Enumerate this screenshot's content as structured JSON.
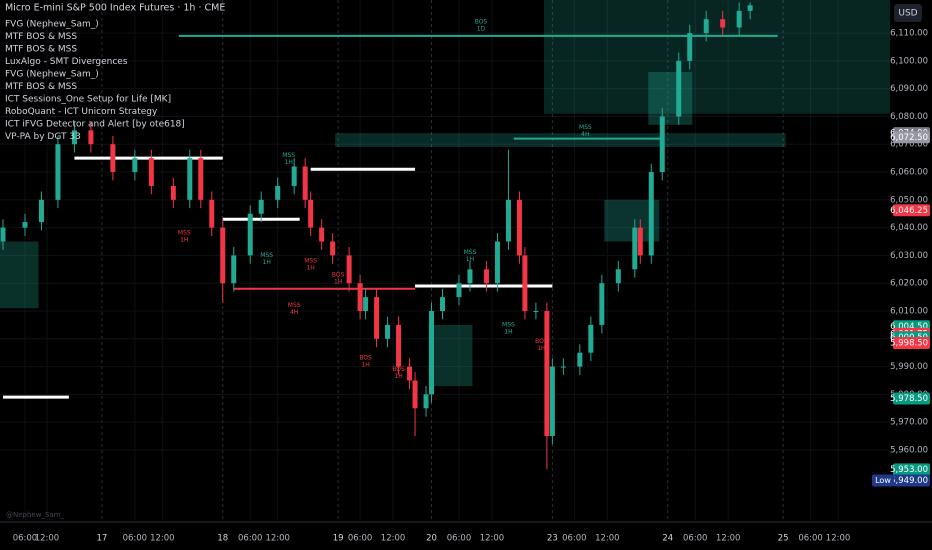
{
  "chart_data": {
    "type": "candlestick",
    "title": "Micro E-mini S&P 500 Index Futures · 1h · CME",
    "indicators": [
      "FVG (Nephew_Sam_)",
      "MTF BOS & MSS",
      "MTF BOS & MSS",
      "LuxAlgo - SMT Divergences",
      "FVG (Nephew_Sam_)",
      "MTF BOS & MSS",
      "ICT Sessions_One Setup for Life [MK]",
      "RoboQuant - ICT Unicorn Strategy",
      "ICT iFVG Detector and Alert [by ote618]",
      "VP-PA by DGT 33"
    ],
    "watermark": "@Nephew_Sam_",
    "currency": "USD",
    "up_color": "#22ab94",
    "down_color": "#f23645",
    "x": [
      0,
      4,
      7,
      10,
      13,
      16,
      20,
      24,
      27,
      31,
      34,
      36,
      38,
      40,
      42,
      45,
      47,
      50,
      53,
      55,
      56,
      58,
      60,
      63,
      65,
      66,
      68,
      70,
      72,
      74,
      75,
      77,
      78,
      80,
      83,
      85,
      88,
      90,
      92,
      94,
      95,
      97,
      99,
      100,
      102,
      105,
      107,
      109,
      112,
      115,
      116,
      118,
      120,
      123,
      125,
      128,
      131,
      134,
      136
    ],
    "open": [
      6035,
      6040,
      6042,
      6050,
      6070,
      6075,
      6070,
      6060,
      6065,
      6055,
      6050,
      6065,
      6050,
      6040,
      6020,
      6030,
      6045,
      6050,
      6055,
      6062,
      6050,
      6040,
      6035,
      6030,
      6020,
      6010,
      6015,
      6000,
      6005,
      5990,
      5985,
      5975,
      5980,
      6010,
      6015,
      6020,
      6025,
      6020,
      6035,
      6050,
      6030,
      6010,
      6010,
      5965,
      5990,
      5990,
      5995,
      6005,
      6020,
      6025,
      6040,
      6030,
      6060,
      6080,
      6100,
      6110,
      6115,
      6112,
      6118
    ],
    "high": [
      6043,
      6045,
      6053,
      6073,
      6078,
      6078,
      6073,
      6068,
      6068,
      6058,
      6068,
      6068,
      6053,
      6043,
      6033,
      6048,
      6053,
      6058,
      6065,
      6065,
      6053,
      6043,
      6038,
      6033,
      6023,
      6018,
      6018,
      6008,
      6008,
      5993,
      5988,
      5983,
      6013,
      6018,
      6023,
      6028,
      6028,
      6038,
      6068,
      6053,
      6033,
      6013,
      6013,
      5993,
      5993,
      5998,
      6008,
      6023,
      6028,
      6043,
      6043,
      6063,
      6083,
      6103,
      6113,
      6118,
      6118,
      6121,
      6121
    ],
    "low": [
      6032,
      6037,
      6039,
      6047,
      6067,
      6067,
      6057,
      6057,
      6052,
      6047,
      6047,
      6047,
      6037,
      6013,
      6017,
      6027,
      6042,
      6047,
      6052,
      6047,
      6037,
      6032,
      6027,
      6017,
      6007,
      6007,
      5997,
      5997,
      5987,
      5982,
      5965,
      5972,
      5977,
      6007,
      6012,
      6017,
      6017,
      6017,
      6032,
      6027,
      6007,
      6007,
      5953,
      5962,
      5987,
      5987,
      5992,
      6002,
      6017,
      6022,
      6027,
      6027,
      6057,
      6077,
      6097,
      6107,
      6109,
      6109,
      6115
    ],
    "close": [
      6040,
      6042,
      6050,
      6070,
      6075,
      6070,
      6060,
      6065,
      6055,
      6050,
      6065,
      6050,
      6040,
      6020,
      6030,
      6045,
      6050,
      6055,
      6062,
      6050,
      6040,
      6035,
      6030,
      6020,
      6010,
      6015,
      6000,
      6005,
      5990,
      5985,
      5975,
      5980,
      6010,
      6015,
      6020,
      6025,
      6020,
      6035,
      6050,
      6030,
      6010,
      6010,
      5965,
      5990,
      5990,
      5995,
      6005,
      6020,
      6025,
      6040,
      6030,
      6060,
      6080,
      6100,
      6110,
      6115,
      6112,
      6118,
      6120
    ],
    "xlim": [
      0,
      162
    ],
    "xticks": [
      {
        "value": 4,
        "label": "06:00"
      },
      {
        "value": 8,
        "label": "12:00"
      },
      {
        "value": 18,
        "label": "17"
      },
      {
        "value": 24,
        "label": "06:00"
      },
      {
        "value": 29,
        "label": "12:00"
      },
      {
        "value": 40,
        "label": "18"
      },
      {
        "value": 45,
        "label": "06:00"
      },
      {
        "value": 50,
        "label": "12:00"
      },
      {
        "value": 61,
        "label": "19"
      },
      {
        "value": 65,
        "label": "06:00"
      },
      {
        "value": 71,
        "label": "12:00"
      },
      {
        "value": 78,
        "label": "20"
      },
      {
        "value": 83,
        "label": "06:00"
      },
      {
        "value": 89,
        "label": "12:00"
      },
      {
        "value": 100,
        "label": "23"
      },
      {
        "value": 104,
        "label": "06:00"
      },
      {
        "value": 110,
        "label": "12:00"
      },
      {
        "value": 121,
        "label": "24"
      },
      {
        "value": 126,
        "label": "06:00"
      },
      {
        "value": 132,
        "label": "12:00"
      },
      {
        "value": 142,
        "label": "25"
      },
      {
        "value": 147,
        "label": "06:00"
      },
      {
        "value": 152,
        "label": "12:00"
      }
    ],
    "ylim": [
      5934.8,
      6121.9
    ],
    "yticks": [
      {
        "value": 5960,
        "label": "5,960.00"
      },
      {
        "value": 5970,
        "label": "5,970.00"
      },
      {
        "value": 5980,
        "label": "5,980.00"
      },
      {
        "value": 5990,
        "label": "5,990.00"
      },
      {
        "value": 6000,
        "label": "6,000.00"
      },
      {
        "value": 6010,
        "label": "6,010.00"
      },
      {
        "value": 6020,
        "label": "6,020.00"
      },
      {
        "value": 6030,
        "label": "6,030.00"
      },
      {
        "value": 6040,
        "label": "6,040.00"
      },
      {
        "value": 6050,
        "label": "6,050.00"
      },
      {
        "value": 6060,
        "label": "6,060.00"
      },
      {
        "value": 6070,
        "label": "6,070.00"
      },
      {
        "value": 6080,
        "label": "6,080.00"
      },
      {
        "value": 6090,
        "label": "6,090.00"
      },
      {
        "value": 6100,
        "label": "6,100.00"
      },
      {
        "value": 6110,
        "label": "6,110.00"
      }
    ],
    "price_tags": [
      {
        "value": 6074,
        "label": "6,074.00",
        "color": "#787b86"
      },
      {
        "value": 6072.5,
        "label": "6,072.50",
        "color": "#9598a1"
      },
      {
        "value": 6046.25,
        "label": "6,046.25",
        "color": "#f23645"
      },
      {
        "value": 6004.5,
        "label": "6,004.50",
        "color": "#089981"
      },
      {
        "value": 6001.75,
        "label": "6,001.75",
        "color": "#f23645"
      },
      {
        "value": 6000.5,
        "label": "6,000.50",
        "color": "#089981"
      },
      {
        "value": 5998.5,
        "label": "5,998.50",
        "color": "#f23645"
      },
      {
        "value": 5978.5,
        "label": "5,978.50",
        "color": "#089981"
      },
      {
        "value": 5953,
        "label": "5,953.00",
        "color": "#089981"
      },
      {
        "value": 5949,
        "label": "5,949.00",
        "color": "#1e3a8a"
      }
    ],
    "low_label": "Low",
    "zones": [
      {
        "x": [
          99,
          162
        ],
        "price": [
          6081,
          6121.9
        ],
        "color": "rgba(34,171,148,0.22)"
      },
      {
        "x": [
          61,
          143
        ],
        "price": [
          6069,
          6074
        ],
        "color": "rgba(34,171,148,0.25)"
      },
      {
        "x": [
          0,
          7
        ],
        "price": [
          6011,
          6035
        ],
        "color": "rgba(34,171,148,0.28)"
      },
      {
        "x": [
          78,
          86
        ],
        "price": [
          5983,
          6005
        ],
        "color": "rgba(34,171,148,0.28)"
      },
      {
        "x": [
          118,
          126
        ],
        "price": [
          6096,
          6077
        ],
        "color": "rgba(34,171,148,0.3)"
      },
      {
        "x": [
          110,
          120
        ],
        "price": [
          6035,
          6050
        ],
        "color": "rgba(34,171,148,0.3)"
      }
    ],
    "levels": [
      {
        "x": [
          13,
          40
        ],
        "price": 6065,
        "color": "#ffffff"
      },
      {
        "x": [
          0,
          12
        ],
        "price": 5979,
        "color": "#ffffff"
      },
      {
        "x": [
          40,
          54
        ],
        "price": 6043,
        "color": "#ffffff"
      },
      {
        "x": [
          56,
          75
        ],
        "price": 6061,
        "color": "#ffffff"
      },
      {
        "x": [
          75,
          100
        ],
        "price": 6019,
        "color": "#ffffff"
      },
      {
        "x": [
          32,
          141
        ],
        "price": 6109,
        "color": "#22ab94"
      },
      {
        "x": [
          93,
          120
        ],
        "price": 6072,
        "color": "#22ab94"
      },
      {
        "x": [
          42,
          75
        ],
        "price": 6018,
        "color": "#f23645"
      }
    ],
    "annotations": [
      {
        "text": "BOS",
        "sub": "1D",
        "x": 87,
        "price": 6114
      },
      {
        "text": "MSS",
        "sub": "4H",
        "x": 106,
        "price": 6076
      },
      {
        "text": "MSS",
        "sub": "1H",
        "x": 52,
        "price": 6066
      },
      {
        "text": "MSS",
        "sub": "1H",
        "x": 33,
        "price": 6038
      },
      {
        "text": "MSS",
        "sub": "1H",
        "x": 48,
        "price": 6030
      },
      {
        "text": "MSS",
        "sub": "1H",
        "x": 56,
        "price": 6028
      },
      {
        "text": "BOS",
        "sub": "1H",
        "x": 61,
        "price": 6023
      },
      {
        "text": "MSS",
        "sub": "4H",
        "x": 53,
        "price": 6012
      },
      {
        "text": "BOS",
        "sub": "1H",
        "x": 66,
        "price": 5993
      },
      {
        "text": "BOS",
        "sub": "1H",
        "x": 72,
        "price": 5989
      },
      {
        "text": "MSS",
        "sub": "1H",
        "x": 92,
        "price": 6005
      },
      {
        "text": "BOS",
        "sub": "1H",
        "x": 98,
        "price": 5999
      },
      {
        "text": "MSS",
        "sub": "1H",
        "x": 85,
        "price": 6031
      }
    ]
  }
}
